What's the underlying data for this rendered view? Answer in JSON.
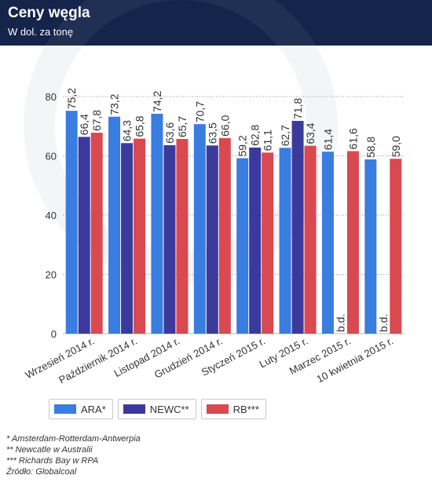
{
  "header": {
    "title": "Ceny węgla",
    "subtitle": "W dol. za tonę"
  },
  "legend": [
    {
      "label": "ARA*",
      "color": "#3a7de0"
    },
    {
      "label": "NEWC**",
      "color": "#3b3a9c"
    },
    {
      "label": "RB***",
      "color": "#d9494f"
    }
  ],
  "footnotes": {
    "ara": "* Amsterdam-Rotterdam-Antwerpia",
    "newc": "** Newcatle w Australii",
    "rb": "*** Richards Bay w RPA",
    "source": "Źródło: Globalcoal"
  },
  "chart_data": {
    "type": "bar",
    "title": "Ceny węgla",
    "subtitle": "W dol. za tonę",
    "categories": [
      "Wrzesień 2014 r.",
      "Październik 2014 r.",
      "Listopad 2014 r.",
      "Grudzień 2014 r.",
      "Styczeń 2015 r.",
      "Luty 2015 r.",
      "Marzec 2015 r.",
      "10 kwietnia 2015 r."
    ],
    "series": [
      {
        "name": "ARA*",
        "color": "#3a7de0",
        "values": [
          75.2,
          73.2,
          74.2,
          70.7,
          59.2,
          62.7,
          61.4,
          58.8
        ],
        "labels": [
          "75,2",
          "73,2",
          "74,2",
          "70,7",
          "59,2",
          "62,7",
          "61,4",
          "58,8"
        ]
      },
      {
        "name": "NEWC**",
        "color": "#3b3a9c",
        "values": [
          66.4,
          64.3,
          63.6,
          63.5,
          62.8,
          71.8,
          null,
          null
        ],
        "labels": [
          "66,4",
          "64,3",
          "63,6",
          "63,5",
          "62,8",
          "71,8",
          "b.d.",
          "b.d."
        ]
      },
      {
        "name": "RB***",
        "color": "#d9494f",
        "values": [
          67.8,
          65.8,
          65.7,
          66.0,
          61.1,
          63.4,
          61.6,
          59.0
        ],
        "labels": [
          "67,8",
          "65,8",
          "65,7",
          "66,0",
          "61,1",
          "63,4",
          "61,6",
          "59,0"
        ]
      }
    ],
    "yticks": [
      "0",
      "20",
      "40",
      "60",
      "80"
    ],
    "ylim": [
      0,
      80
    ],
    "grid": true,
    "legend_position": "bottom-left"
  }
}
